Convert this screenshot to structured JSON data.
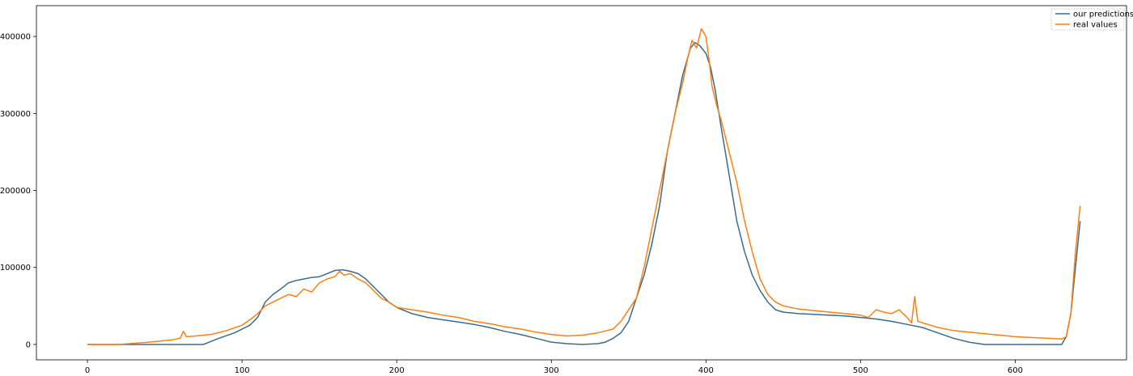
{
  "chart_data": {
    "type": "line",
    "title": "",
    "xlabel": "",
    "ylabel": "",
    "xlim": [
      -33,
      672
    ],
    "ylim": [
      -20000,
      440000
    ],
    "xticks": [
      0,
      100,
      200,
      300,
      400,
      500,
      600
    ],
    "xtick_labels": [
      "0",
      "100",
      "200",
      "300",
      "400",
      "500",
      "600"
    ],
    "yticks": [
      0,
      100000,
      200000,
      300000,
      400000
    ],
    "ytick_labels": [
      "0",
      "100000",
      "200000",
      "300000",
      "400000"
    ],
    "grid": false,
    "legend_position": "top-right",
    "series": [
      {
        "name": "our predictions",
        "color": "#3b6a8f",
        "x": [
          0,
          60,
          75,
          85,
          95,
          105,
          110,
          115,
          120,
          125,
          130,
          135,
          140,
          145,
          150,
          155,
          160,
          165,
          170,
          175,
          180,
          185,
          190,
          195,
          200,
          210,
          220,
          230,
          240,
          250,
          260,
          270,
          280,
          290,
          300,
          310,
          320,
          330,
          335,
          340,
          345,
          350,
          355,
          360,
          365,
          370,
          375,
          380,
          385,
          390,
          393,
          396,
          400,
          403,
          406,
          410,
          415,
          420,
          425,
          430,
          435,
          440,
          445,
          450,
          460,
          470,
          480,
          490,
          500,
          510,
          520,
          530,
          540,
          550,
          560,
          570,
          580,
          590,
          600,
          610,
          620,
          630,
          633,
          636,
          639,
          642
        ],
        "values": [
          0,
          0,
          0,
          8000,
          15000,
          25000,
          35000,
          55000,
          65000,
          72000,
          80000,
          83000,
          85000,
          87000,
          88000,
          92000,
          96000,
          97000,
          95000,
          92000,
          85000,
          75000,
          65000,
          55000,
          48000,
          40000,
          35000,
          32000,
          29000,
          26000,
          22000,
          17000,
          13000,
          8000,
          3000,
          1000,
          0,
          1000,
          3000,
          8000,
          15000,
          30000,
          60000,
          90000,
          130000,
          180000,
          250000,
          300000,
          350000,
          385000,
          392000,
          388000,
          378000,
          360000,
          330000,
          280000,
          220000,
          160000,
          120000,
          90000,
          70000,
          55000,
          45000,
          42000,
          40000,
          39000,
          38000,
          37000,
          35000,
          33000,
          30000,
          26000,
          22000,
          15000,
          8000,
          3000,
          0,
          0,
          0,
          0,
          0,
          0,
          10000,
          40000,
          100000,
          160000
        ]
      },
      {
        "name": "real values",
        "color": "#ff7f0e",
        "x": [
          0,
          20,
          40,
          55,
          60,
          62,
          64,
          70,
          80,
          90,
          100,
          105,
          110,
          115,
          120,
          125,
          130,
          135,
          140,
          145,
          150,
          155,
          160,
          163,
          166,
          170,
          175,
          180,
          185,
          190,
          195,
          200,
          210,
          220,
          230,
          240,
          250,
          260,
          270,
          280,
          290,
          300,
          310,
          320,
          330,
          340,
          345,
          350,
          355,
          360,
          365,
          370,
          375,
          380,
          385,
          388,
          391,
          394,
          397,
          400,
          402,
          404,
          407,
          410,
          415,
          420,
          425,
          430,
          435,
          440,
          445,
          450,
          460,
          470,
          480,
          490,
          500,
          505,
          510,
          515,
          520,
          525,
          530,
          533,
          535,
          537,
          540,
          550,
          560,
          570,
          580,
          590,
          600,
          610,
          620,
          630,
          633,
          636,
          639,
          642
        ],
        "values": [
          0,
          0,
          3000,
          6000,
          8000,
          17000,
          10000,
          11000,
          13000,
          18000,
          25000,
          32000,
          40000,
          50000,
          55000,
          60000,
          65000,
          62000,
          72000,
          68000,
          80000,
          85000,
          88000,
          95000,
          90000,
          92000,
          85000,
          80000,
          70000,
          60000,
          55000,
          48000,
          45000,
          42000,
          38000,
          35000,
          30000,
          27000,
          23000,
          20000,
          16000,
          13000,
          11000,
          12000,
          15000,
          20000,
          30000,
          45000,
          60000,
          100000,
          150000,
          200000,
          250000,
          300000,
          340000,
          370000,
          395000,
          385000,
          410000,
          400000,
          370000,
          335000,
          310000,
          290000,
          250000,
          210000,
          160000,
          120000,
          85000,
          65000,
          55000,
          50000,
          46000,
          44000,
          42000,
          40000,
          38000,
          35000,
          45000,
          42000,
          40000,
          45000,
          35000,
          28000,
          62000,
          30000,
          28000,
          22000,
          18000,
          16000,
          14000,
          12000,
          10000,
          9000,
          8000,
          7000,
          10000,
          40000,
          120000,
          180000
        ]
      }
    ]
  }
}
